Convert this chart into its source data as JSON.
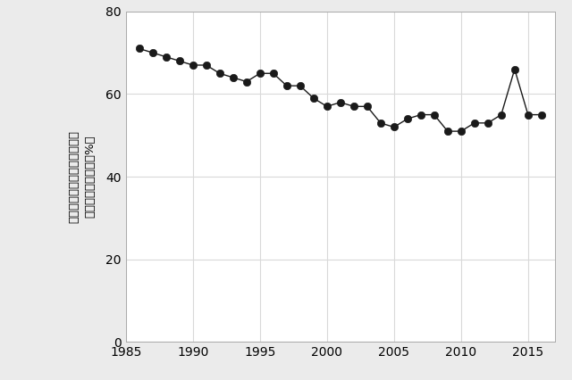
{
  "years": [
    1986,
    1987,
    1988,
    1989,
    1990,
    1991,
    1992,
    1993,
    1994,
    1995,
    1996,
    1997,
    1998,
    1999,
    2000,
    2001,
    2002,
    2003,
    2004,
    2005,
    2006,
    2007,
    2008,
    2009,
    2010,
    2011,
    2012,
    2013,
    2014,
    2015,
    2016
  ],
  "values": [
    71,
    70,
    69,
    68,
    67,
    67,
    65,
    64,
    63,
    65,
    65,
    62,
    62,
    59,
    57,
    58,
    57,
    57,
    53,
    52,
    54,
    55,
    55,
    51,
    51,
    53,
    53,
    55,
    66,
    55,
    55
  ],
  "ylabel_line1": "针葉樹林の伐採後に针葉樹が",
  "ylabel_line2": "再植根された割合（%）",
  "xlim": [
    1985,
    2017
  ],
  "ylim": [
    0,
    80
  ],
  "xticks": [
    1985,
    1990,
    1995,
    2000,
    2005,
    2010,
    2015
  ],
  "yticks": [
    0,
    20,
    40,
    60,
    80
  ],
  "line_color": "#1a1a1a",
  "marker_color": "#1a1a1a",
  "marker_size": 6,
  "line_width": 1.0,
  "grid_color": "#d9d9d9",
  "plot_background": "#ffffff",
  "figure_background": "#ebebeb"
}
